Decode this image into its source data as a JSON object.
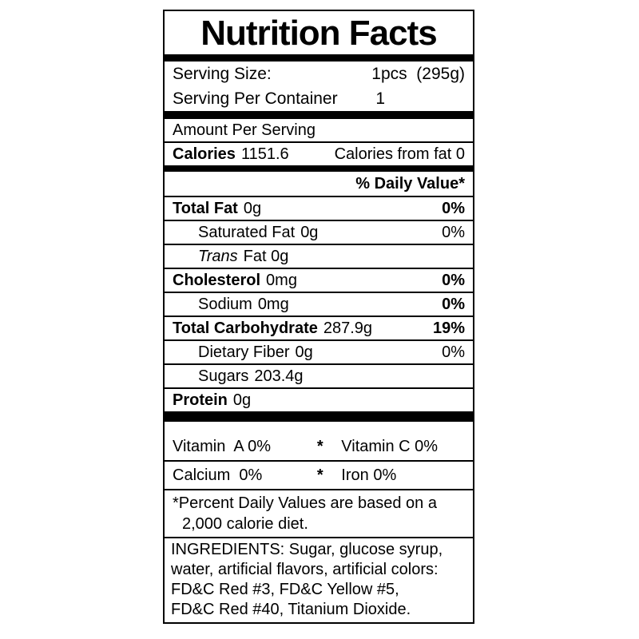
{
  "title": "Nutrition Facts",
  "serving": {
    "size_label": "Serving Size:",
    "size_value": "1pcs  (295g)",
    "container_label": "Serving Per Container",
    "container_value": "1"
  },
  "amount_per_serving": "Amount Per Serving",
  "calories": {
    "label": "Calories",
    "value": "1151.6",
    "from_fat": "Calories from fat 0"
  },
  "daily_value_header": "% Daily Value*",
  "nutrients": [
    {
      "name": "Total Fat",
      "amount": "0g",
      "dv": "0%"
    },
    {
      "name": "Saturated Fat",
      "amount": "0g",
      "dv": "0%"
    },
    {
      "name": "Trans",
      "amount": "Fat 0g",
      "dv": ""
    },
    {
      "name": "Cholesterol",
      "amount": "0mg",
      "dv": "0%"
    },
    {
      "name": "Sodium",
      "amount": "0mg",
      "dv": "0%"
    },
    {
      "name": "Total Carbohydrate",
      "amount": "287.9g",
      "dv": "19%"
    },
    {
      "name": "Dietary Fiber",
      "amount": "0g",
      "dv": "0%"
    },
    {
      "name": "Sugars",
      "amount": "203.4g",
      "dv": ""
    },
    {
      "name": "Protein",
      "amount": "0g",
      "dv": ""
    }
  ],
  "micronutrients": [
    {
      "left": "Vitamin  A 0%",
      "separator": "*",
      "right": "Vitamin C 0%"
    },
    {
      "left": "Calcium  0%",
      "separator": "*",
      "right": "Iron 0%"
    }
  ],
  "footnote": {
    "line1": "*Percent Daily Values are based on a",
    "line2": "2,000 calorie diet."
  },
  "ingredients": {
    "lines": [
      "INGREDIENTS: Sugar, glucose syrup,",
      "water, artificial flavors, artificial colors:",
      "FD&C Red #3, FD&C Yellow #5,",
      "FD&C Red #40, Titanium Dioxide."
    ]
  },
  "colors": {
    "ink": "#000000",
    "background": "#ffffff"
  }
}
